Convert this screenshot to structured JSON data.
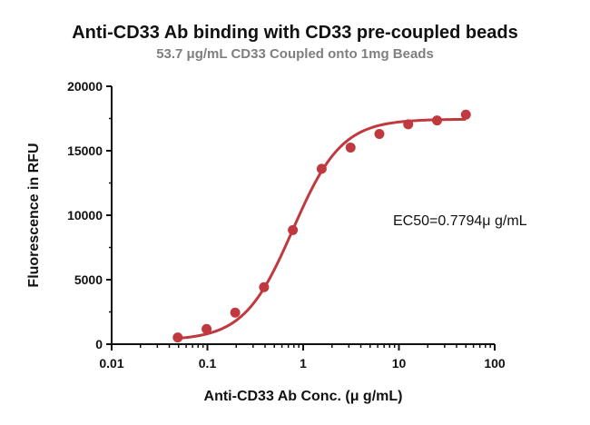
{
  "chart_data": {
    "type": "scatter",
    "title": "Anti-CD33 Ab binding with CD33 pre-coupled beads",
    "subtitle": "53.7 μg/mL CD33 Coupled onto 1mg Beads",
    "xlabel": "Anti-CD33 Ab Conc. (μ g/mL)",
    "ylabel": "Fluorescence in RFU",
    "x_scale": "log",
    "xlim": [
      0.01,
      100
    ],
    "ylim": [
      0,
      20000
    ],
    "x_ticks": [
      "0.01",
      "0.1",
      "1",
      "10",
      "100"
    ],
    "y_ticks": [
      "0",
      "5000",
      "10000",
      "15000",
      "20000"
    ],
    "grid": false,
    "annotation": "EC50=0.7794μ g/mL",
    "color": "#c0393f",
    "series": [
      {
        "points": [
          {
            "x": 0.049,
            "y": 520
          },
          {
            "x": 0.098,
            "y": 1180
          },
          {
            "x": 0.195,
            "y": 2450
          },
          {
            "x": 0.39,
            "y": 4420
          },
          {
            "x": 0.78,
            "y": 8850
          },
          {
            "x": 1.56,
            "y": 13600
          },
          {
            "x": 3.125,
            "y": 15250
          },
          {
            "x": 6.25,
            "y": 16300
          },
          {
            "x": 12.5,
            "y": 17050
          },
          {
            "x": 25,
            "y": 17350
          },
          {
            "x": 50,
            "y": 17800
          }
        ],
        "fit": {
          "bottom": 300,
          "top": 17450,
          "ec50": 0.7794,
          "hill": 1.7
        }
      }
    ]
  }
}
